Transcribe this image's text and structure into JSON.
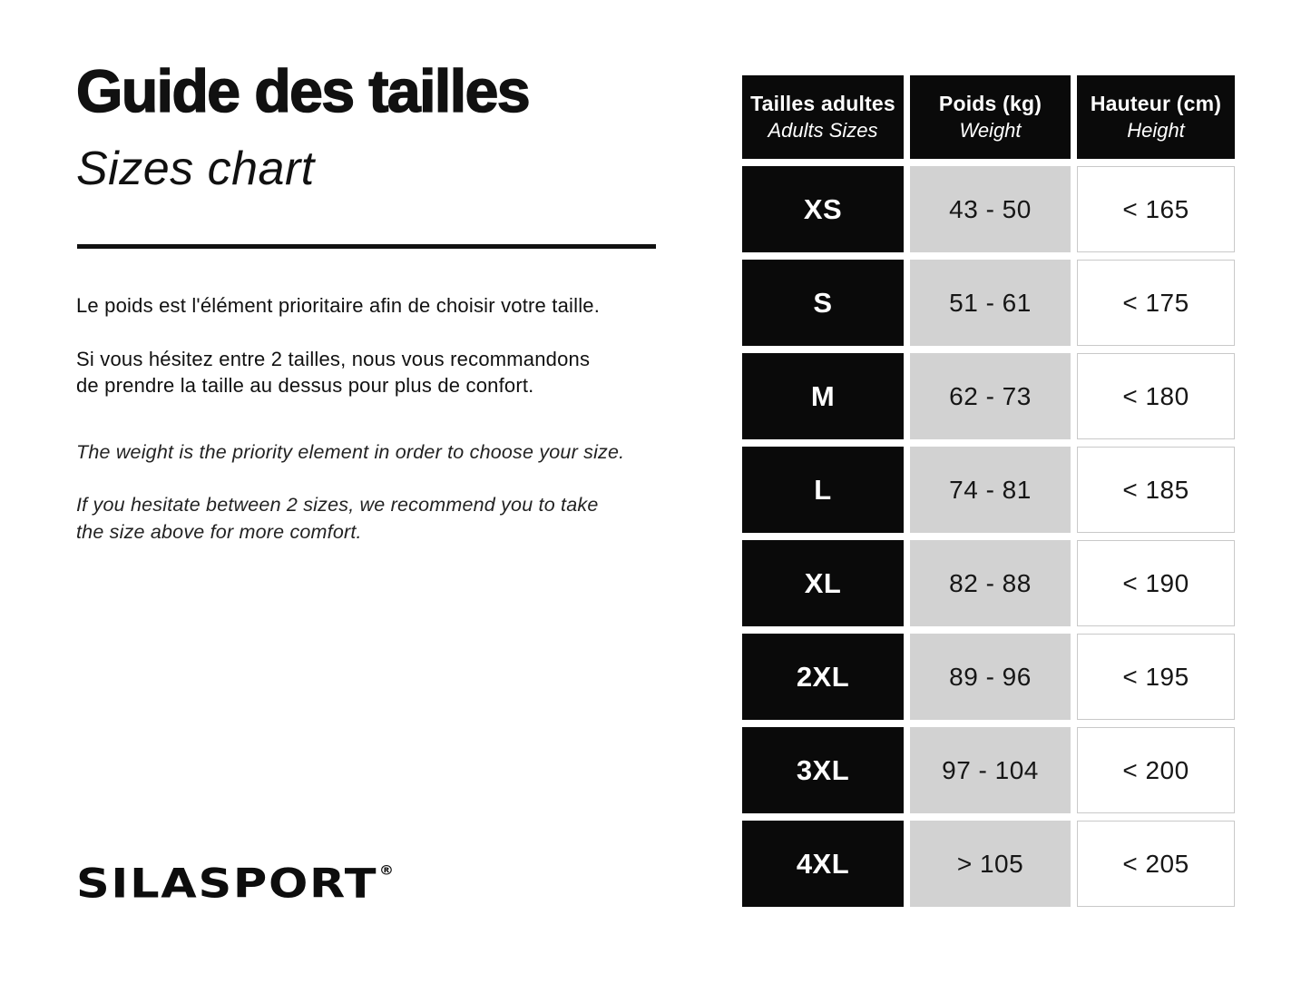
{
  "left_panel": {
    "title": "Guide des tailles",
    "subtitle": "Sizes chart",
    "intro_fr": "Le poids est l'élément prioritaire afin de choisir votre taille.",
    "advice_fr_line1": "Si vous hésitez entre 2 tailles, nous vous recommandons",
    "advice_fr_line2": "de prendre la taille au dessus pour plus de confort.",
    "intro_en": "The weight is the priority element in order to choose your size.",
    "advice_en_line1": "If you hesitate between 2 sizes, we recommend you to take",
    "advice_en_line2": "the size above for more comfort.",
    "logo_text": "SILASPORT",
    "logo_registered_mark": "®"
  },
  "size_table": {
    "headers": {
      "sizes": {
        "fr": "Tailles adultes",
        "en": "Adults Sizes"
      },
      "weight": {
        "fr": "Poids (kg)",
        "en": "Weight"
      },
      "height": {
        "fr": "Hauteur (cm)",
        "en": "Height"
      }
    },
    "rows": [
      {
        "size": "XS",
        "weight_kg": "43 - 50",
        "height_cm": "< 165"
      },
      {
        "size": "S",
        "weight_kg": "51 - 61",
        "height_cm": "< 175"
      },
      {
        "size": "M",
        "weight_kg": "62 - 73",
        "height_cm": "< 180"
      },
      {
        "size": "L",
        "weight_kg": "74 - 81",
        "height_cm": "< 185"
      },
      {
        "size": "XL",
        "weight_kg": "82 - 88",
        "height_cm": "< 190"
      },
      {
        "size": "2XL",
        "weight_kg": "89 - 96",
        "height_cm": "< 195"
      },
      {
        "size": "3XL",
        "weight_kg": "97 - 104",
        "height_cm": "< 200"
      },
      {
        "size": "4XL",
        "weight_kg": "> 105",
        "height_cm": "< 205"
      }
    ]
  },
  "colors": {
    "background": "#ffffff",
    "cell_black": "#0a0a0a",
    "cell_gray": "#d2d2d2",
    "cell_white_border": "#c9c9c9",
    "text": "#111111"
  }
}
